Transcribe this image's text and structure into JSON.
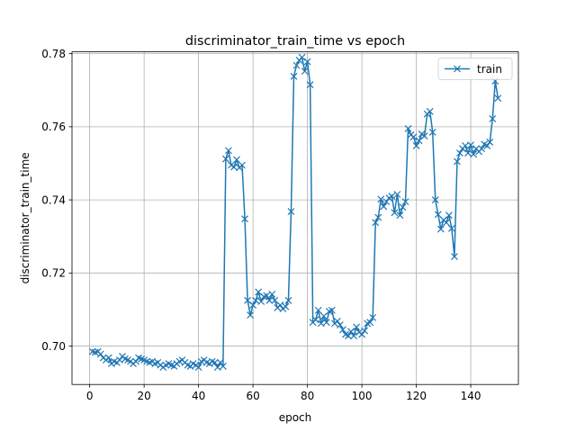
{
  "chart_data": {
    "type": "line",
    "title": "discriminator_train_time vs epoch",
    "xlabel": "epoch",
    "ylabel": "discriminator_train_time",
    "xlim": [
      -6.5,
      157.5
    ],
    "ylim": [
      0.6895,
      0.7805
    ],
    "xticks": [
      0,
      20,
      40,
      60,
      80,
      100,
      120,
      140
    ],
    "yticks": [
      0.7,
      0.72,
      0.74,
      0.76,
      0.78
    ],
    "ytick_labels": [
      "0.70",
      "0.72",
      "0.74",
      "0.76",
      "0.78"
    ],
    "grid": true,
    "legend_position": "top-right",
    "series": [
      {
        "name": "train",
        "color": "#1f77b4",
        "marker": "x",
        "x": [
          1,
          2,
          3,
          4,
          5,
          6,
          7,
          8,
          9,
          10,
          11,
          12,
          13,
          14,
          15,
          16,
          17,
          18,
          19,
          20,
          21,
          22,
          23,
          24,
          25,
          26,
          27,
          28,
          29,
          30,
          31,
          32,
          33,
          34,
          35,
          36,
          37,
          38,
          39,
          40,
          41,
          42,
          43,
          44,
          45,
          46,
          47,
          48,
          49,
          50,
          51,
          52,
          53,
          54,
          55,
          56,
          57,
          58,
          59,
          60,
          61,
          62,
          63,
          64,
          65,
          66,
          67,
          68,
          69,
          70,
          71,
          72,
          73,
          74,
          75,
          76,
          77,
          78,
          79,
          80,
          81,
          82,
          83,
          84,
          85,
          86,
          87,
          88,
          89,
          90,
          91,
          92,
          93,
          94,
          95,
          96,
          97,
          98,
          99,
          100,
          101,
          102,
          103,
          104,
          105,
          106,
          107,
          108,
          109,
          110,
          111,
          112,
          113,
          114,
          115,
          116,
          117,
          118,
          119,
          120,
          121,
          122,
          123,
          124,
          125,
          126,
          127,
          128,
          129,
          130,
          131,
          132,
          133,
          134,
          135,
          136,
          137,
          138,
          139,
          140,
          141,
          142,
          143,
          144,
          145,
          146,
          147,
          148,
          149,
          150
        ],
        "values": [
          0.6985,
          0.6983,
          0.6985,
          0.6978,
          0.6968,
          0.6962,
          0.6968,
          0.6952,
          0.6958,
          0.6955,
          0.6962,
          0.6972,
          0.6965,
          0.6962,
          0.6958,
          0.6952,
          0.6958,
          0.6968,
          0.6965,
          0.6962,
          0.6958,
          0.6955,
          0.6958,
          0.6952,
          0.6955,
          0.6948,
          0.6942,
          0.6948,
          0.6952,
          0.6948,
          0.6945,
          0.6952,
          0.6958,
          0.6962,
          0.6955,
          0.6948,
          0.6945,
          0.6952,
          0.6948,
          0.6942,
          0.6958,
          0.6962,
          0.6955,
          0.6952,
          0.6958,
          0.6955,
          0.6942,
          0.6955,
          0.6945,
          0.7512,
          0.7535,
          0.7495,
          0.749,
          0.751,
          0.7488,
          0.7495,
          0.7348,
          0.7125,
          0.7085,
          0.7112,
          0.7125,
          0.7148,
          0.7122,
          0.7135,
          0.7138,
          0.7125,
          0.7142,
          0.7125,
          0.7105,
          0.7112,
          0.7102,
          0.7108,
          0.7125,
          0.7368,
          0.7738,
          0.7768,
          0.7782,
          0.779,
          0.7752,
          0.7778,
          0.7715,
          0.7065,
          0.7072,
          0.7098,
          0.7062,
          0.7082,
          0.7065,
          0.7095,
          0.7098,
          0.7062,
          0.7068,
          0.7058,
          0.7045,
          0.7032,
          0.7028,
          0.704,
          0.7028,
          0.7052,
          0.7038,
          0.7032,
          0.7042,
          0.7062,
          0.7065,
          0.7078,
          0.7338,
          0.7352,
          0.7402,
          0.7382,
          0.7395,
          0.7405,
          0.741,
          0.7365,
          0.7415,
          0.7358,
          0.738,
          0.7395,
          0.7595,
          0.7578,
          0.7572,
          0.7548,
          0.7562,
          0.758,
          0.7575,
          0.7635,
          0.7642,
          0.7585,
          0.74,
          0.736,
          0.732,
          0.7345,
          0.7338,
          0.7358,
          0.7322,
          0.7245,
          0.7505,
          0.7528,
          0.754,
          0.7548,
          0.7528,
          0.755,
          0.7525,
          0.754,
          0.7532,
          0.754,
          0.7552,
          0.7548,
          0.7558,
          0.7622,
          0.7725,
          0.7678
        ]
      }
    ]
  }
}
